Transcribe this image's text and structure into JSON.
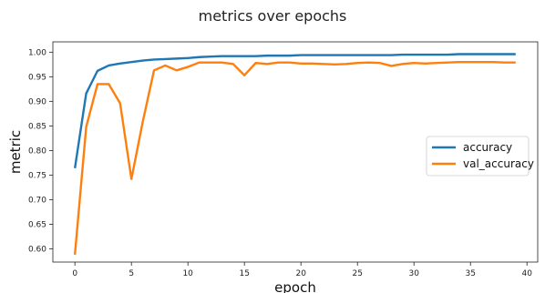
{
  "chart_data": {
    "type": "line",
    "title": "metrics over epochs",
    "xlabel": "epoch",
    "ylabel": "metric",
    "xlim": [
      -1.95,
      40.95
    ],
    "ylim": [
      0.573,
      1.021
    ],
    "xticks": [
      0,
      5,
      10,
      15,
      20,
      25,
      30,
      35,
      40
    ],
    "yticks": [
      0.6,
      0.65,
      0.7,
      0.75,
      0.8,
      0.85,
      0.9,
      0.95,
      1.0
    ],
    "ytick_labels": [
      "0.60",
      "0.65",
      "0.70",
      "0.75",
      "0.80",
      "0.85",
      "0.90",
      "0.95",
      "1.00"
    ],
    "grid": false,
    "legend_position": "center-right",
    "x": [
      0,
      1,
      2,
      3,
      4,
      5,
      6,
      7,
      8,
      9,
      10,
      11,
      12,
      13,
      14,
      15,
      16,
      17,
      18,
      19,
      20,
      21,
      22,
      23,
      24,
      25,
      26,
      27,
      28,
      29,
      30,
      31,
      32,
      33,
      34,
      35,
      36,
      37,
      38,
      39
    ],
    "series": [
      {
        "name": "accuracy",
        "color": "#1f77b4",
        "values": [
          0.764,
          0.916,
          0.962,
          0.973,
          0.977,
          0.98,
          0.983,
          0.985,
          0.986,
          0.987,
          0.988,
          0.99,
          0.991,
          0.992,
          0.992,
          0.992,
          0.992,
          0.993,
          0.993,
          0.993,
          0.994,
          0.994,
          0.994,
          0.994,
          0.994,
          0.994,
          0.994,
          0.994,
          0.994,
          0.995,
          0.995,
          0.995,
          0.995,
          0.995,
          0.996,
          0.996,
          0.996,
          0.996,
          0.996,
          0.996
        ]
      },
      {
        "name": "val_accuracy",
        "color": "#ff7f0e",
        "values": [
          0.588,
          0.848,
          0.935,
          0.935,
          0.896,
          0.742,
          0.858,
          0.963,
          0.973,
          0.963,
          0.97,
          0.979,
          0.979,
          0.979,
          0.976,
          0.953,
          0.978,
          0.976,
          0.979,
          0.979,
          0.977,
          0.977,
          0.976,
          0.975,
          0.976,
          0.978,
          0.979,
          0.978,
          0.972,
          0.976,
          0.978,
          0.977,
          0.978,
          0.979,
          0.98,
          0.98,
          0.98,
          0.98,
          0.979,
          0.979
        ]
      }
    ]
  }
}
